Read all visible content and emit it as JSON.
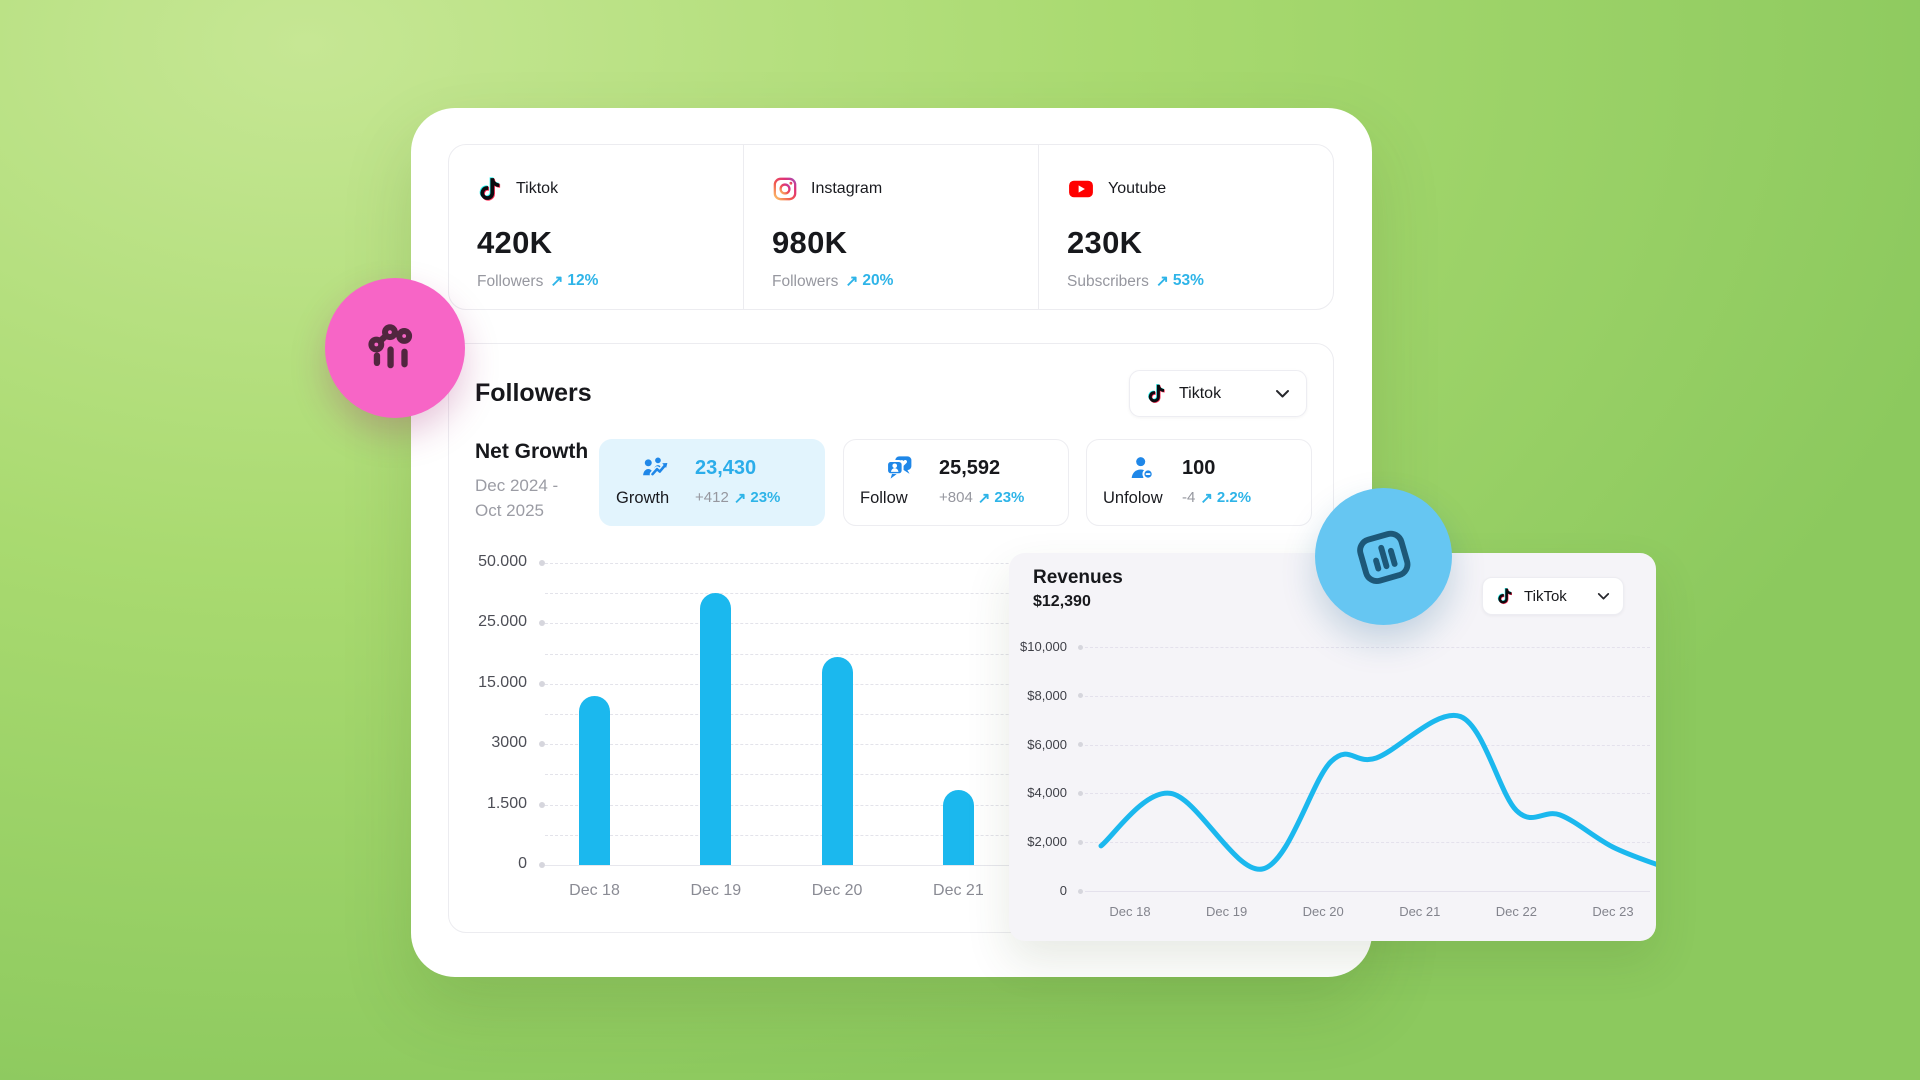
{
  "icons": {
    "trend_up": "↗"
  },
  "colors": {
    "accent_cyan": "#1bb8ee",
    "percent_blue": "#2eb4e8",
    "stat_icon_blue": "#1f87e8",
    "growth_card_bg": "#e2f4fd",
    "card_border": "#ececf0",
    "muted_text": "#96979f",
    "dark_text": "#17181c",
    "revenue_card_bg": "#f5f4f8",
    "pink_badge": "#f765c6",
    "pink_badge_icon": "#52263f",
    "blue_badge": "#66c6f2",
    "blue_badge_icon": "#1d5878",
    "background_green_light": "#c6e794",
    "background_green_dark": "#8cc95e"
  },
  "platform_stats": [
    {
      "platform": "Tiktok",
      "icon": "tiktok-icon",
      "value": "420K",
      "metric": "Followers",
      "change": "12%"
    },
    {
      "platform": "Instagram",
      "icon": "instagram-icon",
      "value": "980K",
      "metric": "Followers",
      "change": "20%"
    },
    {
      "platform": "Youtube",
      "icon": "youtube-icon",
      "value": "230K",
      "metric": "Subscribers",
      "change": "53%"
    }
  ],
  "followers_section": {
    "title": "Followers",
    "platform_selector": {
      "label": "Tiktok"
    },
    "net_growth": {
      "title": "Net Growth",
      "period_line1": "Dec 2024 -",
      "period_line2": "Oct 2025"
    },
    "stats": [
      {
        "label": "Growth",
        "value": "23,430",
        "delta": "+412",
        "change": "23%",
        "icon": "growth-icon",
        "highlighted": true
      },
      {
        "label": "Follow",
        "value": "25,592",
        "delta": "+804",
        "change": "23%",
        "icon": "follow-icon",
        "highlighted": false
      },
      {
        "label": "Unfolow",
        "value": "100",
        "delta": "-4",
        "change": "2.2%",
        "icon": "unfollow-icon",
        "highlighted": false
      }
    ]
  },
  "revenues_section": {
    "title": "Revenues",
    "total": "$12,390",
    "platform_selector": {
      "label": "TikTok"
    }
  },
  "chart_data": [
    {
      "type": "bar",
      "title": "Followers net growth by day",
      "categories": [
        "Dec 18",
        "Dec 19",
        "Dec 20",
        "Dec 21"
      ],
      "values": [
        13500,
        37500,
        20000,
        1900
      ],
      "bar_height_pct": [
        56,
        90,
        69,
        25
      ],
      "y_tick_labels": [
        "0",
        "1.500",
        "3000",
        "15.000",
        "25.000",
        "50.000"
      ],
      "bar_color": "#1bb8ee",
      "grid": "dashed horizontal, minor lines between ticks",
      "legend": "none"
    },
    {
      "type": "line",
      "title": "Revenues ($, TikTok)",
      "categories": [
        "Dec 18",
        "Dec 19",
        "Dec 20",
        "Dec 21",
        "Dec 22",
        "Dec 23"
      ],
      "values_at_ticks": [
        3650,
        1950,
        4800,
        6550,
        3250,
        1700
      ],
      "y_tick_labels": [
        "0",
        "$2,000",
        "$4,000",
        "$6,000",
        "$8,000",
        "$10,000"
      ],
      "ylim": [
        0,
        10000
      ],
      "curve_points": [
        {
          "day": 17.7,
          "value": 1850
        },
        {
          "day": 18.42,
          "value": 4000
        },
        {
          "day": 19.37,
          "value": 900
        },
        {
          "day": 20.08,
          "value": 5300
        },
        {
          "day": 20.55,
          "value": 5450
        },
        {
          "day": 21.42,
          "value": 7150
        },
        {
          "day": 22.0,
          "value": 3300
        },
        {
          "day": 22.45,
          "value": 3120
        },
        {
          "day": 23.0,
          "value": 1800
        },
        {
          "day": 23.55,
          "value": 950
        }
      ],
      "line_color": "#1bb8ee",
      "grid": "dashed horizontal",
      "legend": "none"
    }
  ]
}
